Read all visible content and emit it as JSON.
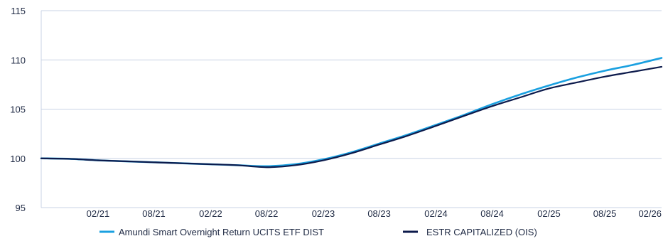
{
  "chart_data": {
    "type": "line",
    "title": "",
    "xlabel": "",
    "ylabel": "",
    "ylim": [
      95,
      115
    ],
    "yticks": [
      95,
      100,
      105,
      110,
      115
    ],
    "xlim": [
      "2020-08-25",
      "2026-02-25"
    ],
    "xticks": [
      {
        "date": "2021-02-25",
        "label": "02/21"
      },
      {
        "date": "2021-08-25",
        "label": "08/21"
      },
      {
        "date": "2022-02-25",
        "label": "02/22"
      },
      {
        "date": "2022-08-25",
        "label": "08/22"
      },
      {
        "date": "2023-02-25",
        "label": "02/23"
      },
      {
        "date": "2023-08-25",
        "label": "08/23"
      },
      {
        "date": "2024-02-25",
        "label": "02/24"
      },
      {
        "date": "2024-08-25",
        "label": "08/24"
      },
      {
        "date": "2025-02-25",
        "label": "02/25"
      },
      {
        "date": "2025-08-25",
        "label": "08/25"
      },
      {
        "date": "2026-02-25",
        "label": "02/26"
      }
    ],
    "grid": "horizontal",
    "legend_position": "bottom",
    "series": [
      {
        "name": "Amundi Smart Overnight Return UCITS ETF DIST",
        "color": "#1aa0e0",
        "x": [
          "2020-08-25",
          "2020-11-25",
          "2021-02-25",
          "2021-05-25",
          "2021-08-25",
          "2021-11-25",
          "2022-02-25",
          "2022-05-25",
          "2022-08-25",
          "2022-11-25",
          "2023-02-25",
          "2023-05-25",
          "2023-08-25",
          "2023-11-25",
          "2024-02-25",
          "2024-05-25",
          "2024-08-25",
          "2024-11-25",
          "2025-02-25",
          "2025-05-25",
          "2025-08-25",
          "2025-11-25",
          "2026-02-25"
        ],
        "y": [
          100.0,
          99.95,
          99.8,
          99.7,
          99.6,
          99.5,
          99.4,
          99.3,
          99.2,
          99.4,
          99.9,
          100.6,
          101.5,
          102.4,
          103.4,
          104.4,
          105.5,
          106.5,
          107.4,
          108.2,
          108.9,
          109.5,
          110.2
        ]
      },
      {
        "name": "ESTR CAPITALIZED (OIS)",
        "color": "#0c1a4b",
        "x": [
          "2020-08-25",
          "2020-11-25",
          "2021-02-25",
          "2021-05-25",
          "2021-08-25",
          "2021-11-25",
          "2022-02-25",
          "2022-05-25",
          "2022-08-25",
          "2022-11-25",
          "2023-02-25",
          "2023-05-25",
          "2023-08-25",
          "2023-11-25",
          "2024-02-25",
          "2024-05-25",
          "2024-08-25",
          "2024-11-25",
          "2025-02-25",
          "2025-05-25",
          "2025-08-25",
          "2025-11-25",
          "2026-02-25"
        ],
        "y": [
          100.0,
          99.95,
          99.8,
          99.7,
          99.6,
          99.5,
          99.4,
          99.3,
          99.1,
          99.3,
          99.8,
          100.5,
          101.4,
          102.3,
          103.3,
          104.3,
          105.3,
          106.2,
          107.1,
          107.7,
          108.3,
          108.8,
          109.3
        ]
      }
    ]
  }
}
